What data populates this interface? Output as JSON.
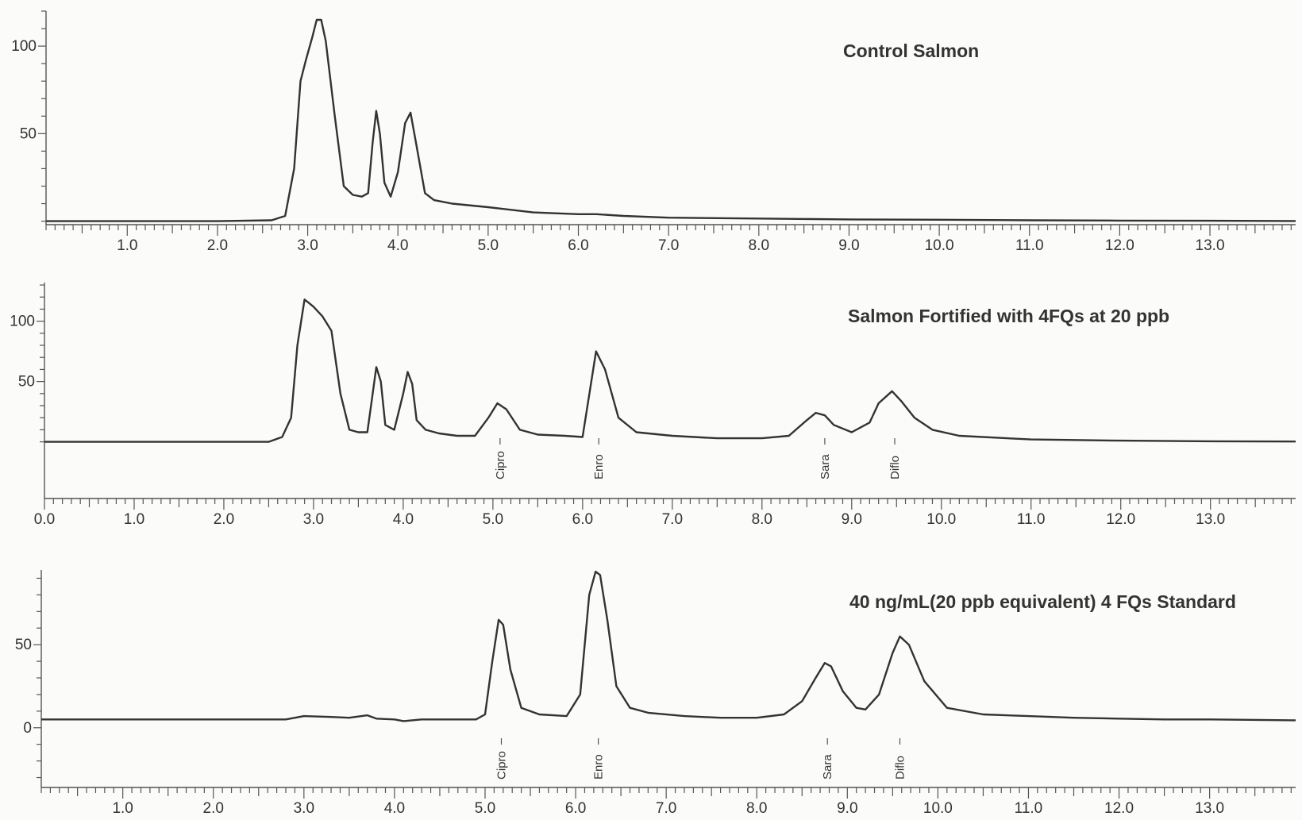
{
  "chart_data": [
    {
      "type": "line",
      "title": "Control Salmon",
      "xlabel": "",
      "ylabel": "",
      "xlim": [
        0.1,
        13.95
      ],
      "ylim": [
        -2,
        120
      ],
      "grid": false,
      "x_ticks_major": [
        1.0,
        2.0,
        3.0,
        4.0,
        5.0,
        6.0,
        7.0,
        8.0,
        9.0,
        10.0,
        11.0,
        12.0,
        13.0
      ],
      "x_tick_labels": [
        "1.0",
        "2.0",
        "3.0",
        "4.0",
        "5.0",
        "6.0",
        "7.0",
        "8.0",
        "9.0",
        "10.0",
        "11.0",
        "12.0",
        "13.0"
      ],
      "y_ticks": [
        50,
        100
      ],
      "y_tick_labels": [
        "50",
        "100"
      ],
      "series": [
        {
          "x": [
            0.1,
            1.0,
            2.0,
            2.6,
            2.75,
            2.85,
            2.92,
            2.98,
            3.05,
            3.1,
            3.15,
            3.2,
            3.3,
            3.4,
            3.5,
            3.6,
            3.67,
            3.72,
            3.76,
            3.8,
            3.85,
            3.92,
            4.0,
            4.08,
            4.14,
            4.2,
            4.3,
            4.4,
            4.6,
            5.0,
            5.5,
            6.0,
            6.2,
            6.5,
            7.0,
            8.0,
            9.0,
            10.0,
            11.0,
            12.0,
            13.0,
            13.95
          ],
          "y": [
            0,
            0,
            0,
            0.5,
            3,
            30,
            80,
            92,
            105,
            115,
            115,
            103,
            60,
            20,
            15,
            14,
            16,
            45,
            63,
            50,
            22,
            14,
            28,
            56,
            62,
            45,
            16,
            12,
            10,
            8,
            5,
            4,
            4,
            3,
            2,
            1.5,
            1,
            0.8,
            0.5,
            0.3,
            0.2,
            0.1
          ]
        }
      ]
    },
    {
      "type": "line",
      "title": "Salmon Fortified with 4FQs at 20 ppb",
      "xlabel": "",
      "ylabel": "",
      "xlim": [
        0.0,
        13.95
      ],
      "ylim": [
        -45,
        132
      ],
      "grid": false,
      "x_ticks_major": [
        0.0,
        1.0,
        2.0,
        3.0,
        4.0,
        5.0,
        6.0,
        7.0,
        8.0,
        9.0,
        10.0,
        11.0,
        12.0,
        13.0
      ],
      "x_tick_labels": [
        "0.0",
        "1.0",
        "2.0",
        "3.0",
        "4.0",
        "5.0",
        "6.0",
        "7.0",
        "8.0",
        "9.0",
        "10.0",
        "11.0",
        "12.0",
        "13.0"
      ],
      "y_ticks": [
        50,
        100
      ],
      "y_tick_labels": [
        "50",
        "100"
      ],
      "peak_labels": [
        {
          "text": "Cipro",
          "x": 5.08
        },
        {
          "text": "Enro",
          "x": 6.18
        },
        {
          "text": "Sara",
          "x": 8.7
        },
        {
          "text": "Diflo",
          "x": 9.48
        }
      ],
      "series": [
        {
          "x": [
            0.0,
            1.0,
            2.0,
            2.5,
            2.65,
            2.75,
            2.82,
            2.9,
            2.95,
            3.0,
            3.1,
            3.2,
            3.3,
            3.4,
            3.5,
            3.6,
            3.65,
            3.7,
            3.75,
            3.8,
            3.9,
            4.0,
            4.05,
            4.1,
            4.15,
            4.25,
            4.4,
            4.6,
            4.8,
            4.95,
            5.05,
            5.15,
            5.3,
            5.5,
            5.8,
            6.0,
            6.08,
            6.15,
            6.25,
            6.4,
            6.6,
            7.0,
            7.5,
            8.0,
            8.3,
            8.5,
            8.6,
            8.7,
            8.8,
            9.0,
            9.2,
            9.3,
            9.45,
            9.55,
            9.7,
            9.9,
            10.2,
            11.0,
            12.0,
            13.0,
            13.95
          ],
          "y": [
            0,
            0,
            0,
            0,
            4,
            20,
            80,
            118,
            115,
            112,
            104,
            92,
            40,
            10,
            8,
            8,
            35,
            62,
            50,
            14,
            10,
            40,
            58,
            48,
            18,
            10,
            7,
            5,
            5,
            20,
            32,
            27,
            10,
            6,
            5,
            4,
            42,
            75,
            60,
            20,
            8,
            5,
            3,
            3,
            5,
            18,
            24,
            22,
            14,
            8,
            16,
            32,
            42,
            34,
            20,
            10,
            5,
            2,
            1,
            0.5,
            0.3
          ]
        }
      ]
    },
    {
      "type": "line",
      "title": "40 ng/mL(20 ppb equivalent) 4 FQs Standard",
      "xlabel": "",
      "ylabel": "",
      "xlim": [
        0.1,
        13.95
      ],
      "ylim": [
        -35,
        95
      ],
      "grid": false,
      "x_ticks_major": [
        1.0,
        2.0,
        3.0,
        4.0,
        5.0,
        6.0,
        7.0,
        8.0,
        9.0,
        10.0,
        11.0,
        12.0,
        13.0
      ],
      "x_tick_labels": [
        "1.0",
        "2.0",
        "3.0",
        "4.0",
        "5.0",
        "6.0",
        "7.0",
        "8.0",
        "9.0",
        "10.0",
        "11.0",
        "12.0",
        "13.0"
      ],
      "y_ticks": [
        0,
        50
      ],
      "y_tick_labels": [
        "0",
        "50"
      ],
      "peak_labels": [
        {
          "text": "Cipro",
          "x": 5.18
        },
        {
          "text": "Enro",
          "x": 6.25
        },
        {
          "text": "Sara",
          "x": 8.78
        },
        {
          "text": "Diflo",
          "x": 9.58
        }
      ],
      "series": [
        {
          "x": [
            0.1,
            1.0,
            2.0,
            2.8,
            3.0,
            3.3,
            3.5,
            3.7,
            3.8,
            4.0,
            4.1,
            4.3,
            4.6,
            4.9,
            5.0,
            5.08,
            5.15,
            5.2,
            5.28,
            5.4,
            5.6,
            5.9,
            6.05,
            6.15,
            6.22,
            6.27,
            6.35,
            6.45,
            6.6,
            6.8,
            7.2,
            7.6,
            8.0,
            8.3,
            8.5,
            8.65,
            8.75,
            8.82,
            8.95,
            9.1,
            9.2,
            9.35,
            9.5,
            9.58,
            9.68,
            9.85,
            10.1,
            10.5,
            11.0,
            11.5,
            12.0,
            12.5,
            13.0,
            13.95
          ],
          "y": [
            5,
            5,
            5,
            5,
            7,
            6.5,
            6,
            7.5,
            5.5,
            5,
            4,
            5,
            5,
            5,
            8,
            40,
            65,
            62,
            35,
            12,
            8,
            7,
            20,
            80,
            94,
            92,
            65,
            25,
            12,
            9,
            7,
            6,
            6,
            8,
            16,
            30,
            39,
            37,
            22,
            12,
            11,
            20,
            45,
            55,
            50,
            28,
            12,
            8,
            7,
            6,
            5.5,
            5,
            5,
            4.5
          ]
        }
      ]
    }
  ]
}
